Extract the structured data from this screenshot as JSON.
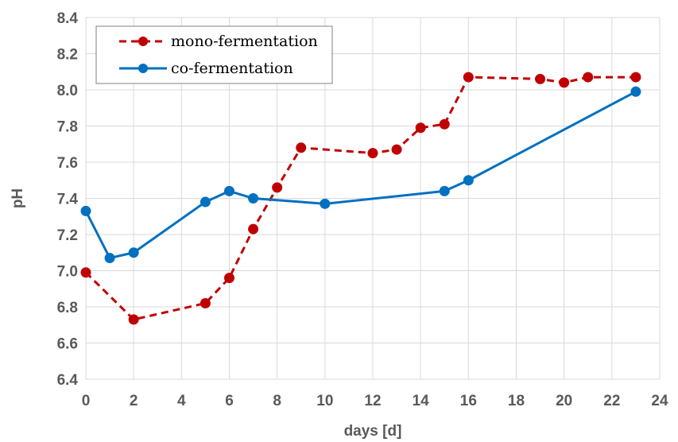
{
  "chart_data": {
    "type": "line",
    "title": "",
    "xlabel": "days [d]",
    "ylabel": "pH",
    "xlim": [
      0,
      24
    ],
    "ylim": [
      6.4,
      8.4
    ],
    "xticks": [
      "0",
      "2",
      "4",
      "6",
      "8",
      "10",
      "12",
      "14",
      "16",
      "18",
      "20",
      "22",
      "24"
    ],
    "yticks": [
      "6.4",
      "6.6",
      "6.8",
      "7.0",
      "7.2",
      "7.4",
      "7.6",
      "7.8",
      "8.0",
      "8.2",
      "8.4"
    ],
    "grid": true,
    "legend_position": "top-left",
    "series": [
      {
        "name": "mono-fermentation",
        "color": "#c00000",
        "line_style": "dashed",
        "x": [
          0,
          2,
          5,
          6,
          7,
          8,
          9,
          12,
          13,
          14,
          15,
          16,
          19,
          20,
          21,
          23
        ],
        "y": [
          6.99,
          6.73,
          6.82,
          6.96,
          7.23,
          7.46,
          7.68,
          7.65,
          7.67,
          7.79,
          7.81,
          8.07,
          8.06,
          8.04,
          8.07,
          8.07
        ]
      },
      {
        "name": "co-fermentation",
        "color": "#0070c0",
        "line_style": "solid",
        "x": [
          0,
          1,
          2,
          5,
          6,
          7,
          10,
          15,
          16,
          23
        ],
        "y": [
          7.33,
          7.07,
          7.1,
          7.38,
          7.44,
          7.4,
          7.37,
          7.44,
          7.5,
          7.99
        ]
      }
    ]
  }
}
